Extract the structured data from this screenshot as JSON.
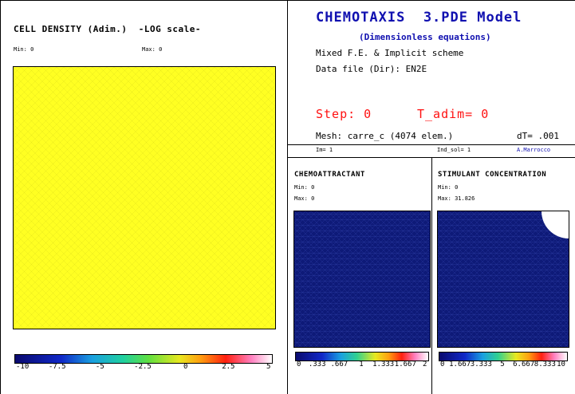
{
  "cell_density": {
    "title": "CELL DENSITY (Adim.)  -LOG scale-",
    "min_label": "Min: 0",
    "max_label": "Max: 0",
    "colorbar_ticks": [
      "-10",
      "-7.5",
      "-5",
      "-2.5",
      "0",
      "2.5",
      "5"
    ],
    "field_color": "#ffff22"
  },
  "header": {
    "title": "CHEMOTAXIS  3.PDE Model",
    "subtitle": "(Dimensionless equations)",
    "method": "Mixed F.E. & Implicit scheme",
    "datafile": "Data file (Dir): EN2E",
    "step": "Step: 0",
    "t_adim": "T_adim= 0",
    "mesh": "Mesh: carre_c (4074 elem.)",
    "dt": "dT= .001",
    "im": "Im= 1",
    "ind_sol": "Ind_sol= 1",
    "author": "A.Marrocco"
  },
  "chemoattractant": {
    "title": "CHEMOATTRACTANT",
    "min_label": "Min: 0",
    "max_label": "Max: 0",
    "colorbar_ticks": [
      "0",
      ".333",
      ".667",
      "1",
      "1.333",
      "1.667",
      "2"
    ]
  },
  "stimulant": {
    "title": "STIMULANT CONCENTRATION",
    "min_label": "Min: 0",
    "max_label": "Max: 31.826",
    "colorbar_ticks": [
      "0",
      "1.667",
      "3.333",
      "5",
      "6.667",
      "8.333",
      "10"
    ]
  },
  "colors": {
    "dark_blue": "#0e1a78",
    "title_blue": "#1010b0",
    "step_red": "#ff1010"
  }
}
